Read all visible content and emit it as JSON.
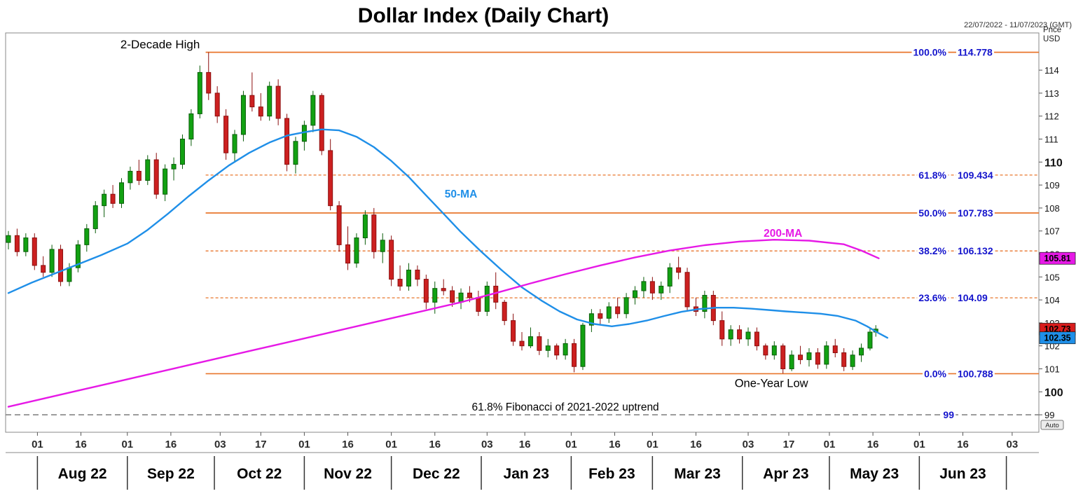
{
  "title": "Dollar Index  (Daily Chart)",
  "header": {
    "date_range": "22/07/2022 - 11/07/2023 (GMT)",
    "axis_unit_line1": "Price",
    "axis_unit_line2": "USD"
  },
  "colors": {
    "up": "#12a112",
    "up_stroke": "#0a5d0a",
    "down": "#cc2020",
    "down_stroke": "#8c0f0f",
    "ma50": "#1f8fe8",
    "ma200": "#e619e6",
    "fib": "#e8762c",
    "fib_label": "#1414cc",
    "gray_line": "#858585",
    "axis_text": "#111111"
  },
  "chart_data": {
    "type": "candlestick",
    "title": "Dollar Index (Daily Chart)",
    "ylim": [
      98.24,
      115.62
    ],
    "x_domain_days": [
      0,
      354
    ],
    "grid": false,
    "yticks": [
      99,
      100,
      101,
      102,
      103,
      104,
      105,
      106,
      107,
      108,
      109,
      110,
      111,
      112,
      113,
      114
    ],
    "ytick_bold": [
      100,
      110
    ],
    "fib_start_day": 68,
    "fib_levels": [
      {
        "pct": "100.0%",
        "value": 114.778,
        "label": "114.778",
        "style": "solid"
      },
      {
        "pct": "61.8%",
        "value": 109.434,
        "label": "109.434",
        "style": "dashed"
      },
      {
        "pct": "50.0%",
        "value": 107.783,
        "label": "107.783",
        "style": "solid"
      },
      {
        "pct": "38.2%",
        "value": 106.132,
        "label": "106.132",
        "style": "dashed"
      },
      {
        "pct": "23.6%",
        "value": 104.09,
        "label": "104.09",
        "style": "dashed"
      },
      {
        "pct": "0.0%",
        "value": 100.788,
        "label": "100.788",
        "style": "solid"
      }
    ],
    "baseline": {
      "value": 99,
      "label": "99",
      "annotation": "61.8% Fibonacci of 2021-2022 uptrend",
      "annotation_day": 192,
      "annotation_price": 99.18
    },
    "annotations": [
      {
        "text": "2-Decade High",
        "day": 66,
        "price": 114.95,
        "anchor": "end",
        "size": 17
      },
      {
        "text": "One-Year Low",
        "day": 263,
        "price": 100.2,
        "anchor": "middle",
        "size": 16.5
      }
    ],
    "ma_labels": [
      {
        "text": "50-MA",
        "day": 156,
        "price": 108.45,
        "color": "#1f8fe8"
      },
      {
        "text": "200-MA",
        "day": 267,
        "price": 106.75,
        "color": "#e619e6"
      }
    ],
    "month_boundaries": [
      10,
      41,
      71,
      102,
      132,
      163,
      194,
      222,
      253,
      283,
      314,
      344
    ],
    "months": [
      {
        "label": "Aug 22",
        "center_day": 25.5
      },
      {
        "label": "Sep 22",
        "center_day": 56
      },
      {
        "label": "Oct 22",
        "center_day": 86.5
      },
      {
        "label": "Nov 22",
        "center_day": 117
      },
      {
        "label": "Dec 22",
        "center_day": 147.5
      },
      {
        "label": "Jan 23",
        "center_day": 178.5
      },
      {
        "label": "Feb 23",
        "center_day": 208
      },
      {
        "label": "Mar 23",
        "center_day": 237.5
      },
      {
        "label": "Apr 23",
        "center_day": 268
      },
      {
        "label": "May 23",
        "center_day": 298.5
      },
      {
        "label": "Jun 23",
        "center_day": 329
      }
    ],
    "day_ticks": [
      {
        "day": 10,
        "label": "01"
      },
      {
        "day": 25,
        "label": "16"
      },
      {
        "day": 41,
        "label": "01"
      },
      {
        "day": 56,
        "label": "16"
      },
      {
        "day": 73,
        "label": "03"
      },
      {
        "day": 87,
        "label": "17"
      },
      {
        "day": 102,
        "label": "01"
      },
      {
        "day": 117,
        "label": "16"
      },
      {
        "day": 132,
        "label": "01"
      },
      {
        "day": 147,
        "label": "16"
      },
      {
        "day": 165,
        "label": "03"
      },
      {
        "day": 178,
        "label": "16"
      },
      {
        "day": 194,
        "label": "01"
      },
      {
        "day": 209,
        "label": "16"
      },
      {
        "day": 222,
        "label": "01"
      },
      {
        "day": 237,
        "label": "16"
      },
      {
        "day": 255,
        "label": "03"
      },
      {
        "day": 269,
        "label": "17"
      },
      {
        "day": 283,
        "label": "01"
      },
      {
        "day": 298,
        "label": "16"
      },
      {
        "day": 314,
        "label": "01"
      },
      {
        "day": 329,
        "label": "16"
      },
      {
        "day": 346,
        "label": "03"
      }
    ],
    "series": [
      {
        "name": "50-MA",
        "color": "#1f8fe8",
        "points": [
          [
            0,
            104.3
          ],
          [
            8,
            104.75
          ],
          [
            16,
            105.15
          ],
          [
            24,
            105.55
          ],
          [
            32,
            105.95
          ],
          [
            41,
            106.45
          ],
          [
            48,
            107.05
          ],
          [
            55,
            107.75
          ],
          [
            62,
            108.5
          ],
          [
            69,
            109.2
          ],
          [
            76,
            109.85
          ],
          [
            83,
            110.4
          ],
          [
            90,
            110.85
          ],
          [
            96,
            111.15
          ],
          [
            102,
            111.3
          ],
          [
            108,
            111.42
          ],
          [
            114,
            111.38
          ],
          [
            120,
            111.1
          ],
          [
            126,
            110.65
          ],
          [
            132,
            110.05
          ],
          [
            138,
            109.35
          ],
          [
            144,
            108.55
          ],
          [
            150,
            107.75
          ],
          [
            156,
            106.95
          ],
          [
            163,
            106.1
          ],
          [
            170,
            105.3
          ],
          [
            177,
            104.55
          ],
          [
            184,
            103.95
          ],
          [
            190,
            103.5
          ],
          [
            196,
            103.15
          ],
          [
            202,
            102.95
          ],
          [
            208,
            102.85
          ],
          [
            214,
            102.95
          ],
          [
            220,
            103.1
          ],
          [
            226,
            103.3
          ],
          [
            232,
            103.48
          ],
          [
            238,
            103.6
          ],
          [
            244,
            103.66
          ],
          [
            250,
            103.66
          ],
          [
            256,
            103.62
          ],
          [
            262,
            103.56
          ],
          [
            268,
            103.5
          ],
          [
            274,
            103.45
          ],
          [
            280,
            103.4
          ],
          [
            286,
            103.3
          ],
          [
            292,
            103.1
          ],
          [
            296,
            102.85
          ],
          [
            300,
            102.55
          ],
          [
            303,
            102.35
          ]
        ]
      },
      {
        "name": "200-MA",
        "color": "#e619e6",
        "points": [
          [
            0,
            99.35
          ],
          [
            12,
            99.7
          ],
          [
            24,
            100.05
          ],
          [
            36,
            100.4
          ],
          [
            48,
            100.75
          ],
          [
            60,
            101.1
          ],
          [
            72,
            101.45
          ],
          [
            84,
            101.8
          ],
          [
            96,
            102.15
          ],
          [
            108,
            102.5
          ],
          [
            120,
            102.85
          ],
          [
            132,
            103.2
          ],
          [
            144,
            103.55
          ],
          [
            156,
            103.9
          ],
          [
            168,
            104.3
          ],
          [
            180,
            104.72
          ],
          [
            192,
            105.12
          ],
          [
            204,
            105.5
          ],
          [
            216,
            105.85
          ],
          [
            228,
            106.15
          ],
          [
            240,
            106.38
          ],
          [
            252,
            106.54
          ],
          [
            264,
            106.62
          ],
          [
            276,
            106.58
          ],
          [
            288,
            106.42
          ],
          [
            294,
            106.15
          ],
          [
            300,
            105.81
          ]
        ]
      }
    ],
    "candles": [
      [
        0,
        106.5,
        107.0,
        106.2,
        106.8
      ],
      [
        3,
        106.8,
        107.1,
        105.9,
        106.1
      ],
      [
        6,
        106.1,
        106.9,
        105.9,
        106.7
      ],
      [
        9,
        106.7,
        106.9,
        105.3,
        105.5
      ],
      [
        12,
        105.5,
        105.9,
        105.0,
        105.2
      ],
      [
        15,
        105.2,
        106.4,
        105.0,
        106.2
      ],
      [
        18,
        106.2,
        106.4,
        104.6,
        104.8
      ],
      [
        21,
        104.8,
        105.6,
        104.6,
        105.4
      ],
      [
        24,
        105.4,
        106.6,
        105.2,
        106.4
      ],
      [
        27,
        106.4,
        107.3,
        106.1,
        107.1
      ],
      [
        30,
        107.1,
        108.3,
        106.9,
        108.1
      ],
      [
        33,
        108.1,
        108.8,
        107.6,
        108.6
      ],
      [
        36,
        108.6,
        109.0,
        108.0,
        108.2
      ],
      [
        39,
        108.2,
        109.3,
        108.0,
        109.1
      ],
      [
        42,
        109.1,
        109.8,
        108.8,
        109.6
      ],
      [
        45,
        109.6,
        110.1,
        109.0,
        109.2
      ],
      [
        48,
        109.2,
        110.3,
        109.0,
        110.1
      ],
      [
        51,
        110.1,
        110.4,
        108.4,
        108.6
      ],
      [
        54,
        108.6,
        109.9,
        108.3,
        109.7
      ],
      [
        57,
        109.7,
        110.2,
        109.2,
        109.9
      ],
      [
        60,
        109.9,
        111.2,
        109.7,
        111.0
      ],
      [
        63,
        111.0,
        112.3,
        110.7,
        112.1
      ],
      [
        66,
        112.1,
        114.2,
        111.9,
        113.9
      ],
      [
        69,
        113.9,
        114.778,
        112.7,
        113.0
      ],
      [
        72,
        113.0,
        113.3,
        111.7,
        112.0
      ],
      [
        75,
        112.0,
        112.3,
        110.1,
        110.4
      ],
      [
        78,
        110.4,
        111.4,
        110.0,
        111.2
      ],
      [
        81,
        111.2,
        113.1,
        110.9,
        112.9
      ],
      [
        84,
        112.9,
        113.9,
        112.2,
        112.4
      ],
      [
        87,
        112.4,
        113.0,
        111.8,
        112.0
      ],
      [
        90,
        112.0,
        113.5,
        111.8,
        113.3
      ],
      [
        93,
        113.3,
        113.6,
        111.6,
        111.9
      ],
      [
        96,
        111.9,
        112.1,
        109.6,
        109.9
      ],
      [
        99,
        109.9,
        111.1,
        109.5,
        110.9
      ],
      [
        102,
        110.9,
        111.8,
        110.5,
        111.6
      ],
      [
        105,
        111.6,
        113.1,
        111.3,
        112.9
      ],
      [
        108,
        112.9,
        113.0,
        110.3,
        110.5
      ],
      [
        111,
        110.5,
        111.0,
        107.9,
        108.1
      ],
      [
        114,
        108.1,
        108.3,
        106.1,
        106.4
      ],
      [
        117,
        106.4,
        107.2,
        105.3,
        105.6
      ],
      [
        120,
        105.6,
        106.9,
        105.4,
        106.7
      ],
      [
        123,
        106.7,
        107.9,
        106.4,
        107.7
      ],
      [
        126,
        107.7,
        108.0,
        105.8,
        106.1
      ],
      [
        129,
        106.1,
        106.9,
        105.6,
        106.6
      ],
      [
        132,
        106.6,
        106.8,
        104.6,
        104.9
      ],
      [
        135,
        104.9,
        105.5,
        104.4,
        104.6
      ],
      [
        138,
        104.6,
        105.6,
        104.4,
        105.3
      ],
      [
        141,
        105.3,
        105.5,
        104.6,
        104.9
      ],
      [
        144,
        104.9,
        105.1,
        103.6,
        103.9
      ],
      [
        147,
        103.9,
        104.8,
        103.4,
        104.5
      ],
      [
        150,
        104.5,
        104.9,
        104.2,
        104.4
      ],
      [
        153,
        104.4,
        104.6,
        103.7,
        103.9
      ],
      [
        156,
        103.9,
        104.5,
        103.6,
        104.3
      ],
      [
        159,
        104.3,
        104.6,
        103.9,
        104.1
      ],
      [
        162,
        104.1,
        104.4,
        103.3,
        103.5
      ],
      [
        165,
        103.5,
        104.8,
        103.3,
        104.6
      ],
      [
        168,
        104.6,
        105.2,
        103.6,
        103.9
      ],
      [
        171,
        103.9,
        104.0,
        102.9,
        103.1
      ],
      [
        174,
        103.1,
        103.4,
        102.0,
        102.2
      ],
      [
        177,
        102.2,
        102.6,
        101.8,
        102.0
      ],
      [
        180,
        102.0,
        102.8,
        101.9,
        102.4
      ],
      [
        183,
        102.4,
        102.6,
        101.6,
        101.8
      ],
      [
        186,
        101.8,
        102.3,
        101.5,
        102.0
      ],
      [
        189,
        102.0,
        102.1,
        101.4,
        101.6
      ],
      [
        192,
        101.6,
        102.3,
        101.4,
        102.1
      ],
      [
        195,
        102.1,
        102.3,
        100.85,
        101.1
      ],
      [
        198,
        101.1,
        103.0,
        100.95,
        102.9
      ],
      [
        201,
        102.9,
        103.6,
        102.6,
        103.4
      ],
      [
        204,
        103.4,
        103.6,
        102.9,
        103.2
      ],
      [
        207,
        103.2,
        103.9,
        103.0,
        103.7
      ],
      [
        210,
        103.7,
        104.1,
        103.2,
        103.4
      ],
      [
        213,
        103.4,
        104.3,
        103.2,
        104.1
      ],
      [
        216,
        104.1,
        104.6,
        103.8,
        104.4
      ],
      [
        219,
        104.4,
        105.0,
        104.1,
        104.8
      ],
      [
        222,
        104.8,
        105.0,
        104.0,
        104.3
      ],
      [
        225,
        104.3,
        104.8,
        104.0,
        104.6
      ],
      [
        228,
        104.6,
        105.6,
        104.3,
        105.4
      ],
      [
        231,
        105.4,
        105.88,
        104.9,
        105.2
      ],
      [
        234,
        105.2,
        105.4,
        103.5,
        103.7
      ],
      [
        237,
        103.7,
        104.1,
        103.3,
        103.5
      ],
      [
        240,
        103.5,
        104.4,
        103.2,
        104.2
      ],
      [
        243,
        104.2,
        104.4,
        102.9,
        103.1
      ],
      [
        246,
        103.1,
        103.5,
        102.0,
        102.3
      ],
      [
        249,
        102.3,
        102.9,
        102.0,
        102.7
      ],
      [
        252,
        102.7,
        102.9,
        102.1,
        102.3
      ],
      [
        255,
        102.3,
        102.8,
        102.0,
        102.6
      ],
      [
        258,
        102.6,
        102.8,
        101.8,
        102.0
      ],
      [
        261,
        102.0,
        102.1,
        101.4,
        101.6
      ],
      [
        264,
        101.6,
        102.2,
        101.4,
        102.0
      ],
      [
        267,
        102.0,
        102.1,
        100.8,
        101.0
      ],
      [
        270,
        101.0,
        101.8,
        100.9,
        101.6
      ],
      [
        273,
        101.6,
        102.0,
        101.2,
        101.4
      ],
      [
        276,
        101.4,
        101.9,
        101.1,
        101.7
      ],
      [
        279,
        101.7,
        101.9,
        101.0,
        101.2
      ],
      [
        282,
        101.2,
        102.2,
        101.0,
        102.0
      ],
      [
        285,
        102.0,
        102.3,
        101.5,
        101.7
      ],
      [
        288,
        101.7,
        101.9,
        100.9,
        101.1
      ],
      [
        291,
        101.1,
        101.8,
        100.95,
        101.6
      ],
      [
        294,
        101.6,
        102.1,
        101.3,
        101.9
      ],
      [
        297,
        101.9,
        102.8,
        101.8,
        102.6
      ],
      [
        299,
        102.6,
        102.9,
        102.4,
        102.73
      ]
    ],
    "price_badges": [
      {
        "label": "105.81",
        "price": 105.81,
        "bg": "#e619e6",
        "fg": "#000000",
        "name": "ma200-price-badge"
      },
      {
        "label": "102.73",
        "price": 102.73,
        "bg": "#d91c1c",
        "fg": "#000000",
        "name": "last-price-badge"
      },
      {
        "label": "102.35",
        "price": 102.35,
        "bg": "#1f8fe8",
        "fg": "#000000",
        "name": "ma50-price-badge"
      }
    ],
    "auto_label": "Auto"
  }
}
